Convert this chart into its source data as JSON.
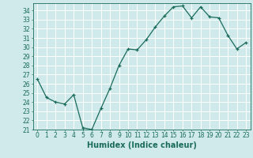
{
  "x": [
    0,
    1,
    2,
    3,
    4,
    5,
    6,
    7,
    8,
    9,
    10,
    11,
    12,
    13,
    14,
    15,
    16,
    17,
    18,
    19,
    20,
    21,
    22,
    23
  ],
  "y": [
    26.5,
    24.5,
    24.0,
    23.8,
    24.8,
    21.2,
    21.0,
    23.3,
    25.5,
    28.0,
    29.8,
    29.7,
    30.8,
    32.2,
    33.4,
    34.4,
    34.5,
    33.2,
    34.4,
    33.3,
    33.2,
    31.3,
    29.8,
    30.5
  ],
  "line_color": "#1a6b5a",
  "marker": "+",
  "marker_size": 3,
  "xlabel": "Humidex (Indice chaleur)",
  "yticks": [
    21,
    22,
    23,
    24,
    25,
    26,
    27,
    28,
    29,
    30,
    31,
    32,
    33,
    34
  ],
  "xticks": [
    0,
    1,
    2,
    3,
    4,
    5,
    6,
    7,
    8,
    9,
    10,
    11,
    12,
    13,
    14,
    15,
    16,
    17,
    18,
    19,
    20,
    21,
    22,
    23
  ],
  "bg_color": "#d0eaeb",
  "grid_color": "#ffffff",
  "tick_color": "#1a6b5a",
  "label_color": "#1a6b5a",
  "tick_fontsize": 5.5,
  "xlabel_fontsize": 7.0,
  "ylim": [
    21,
    34.8
  ],
  "xlim": [
    -0.5,
    23.5
  ],
  "linewidth": 0.9,
  "markeredgewidth": 0.9
}
